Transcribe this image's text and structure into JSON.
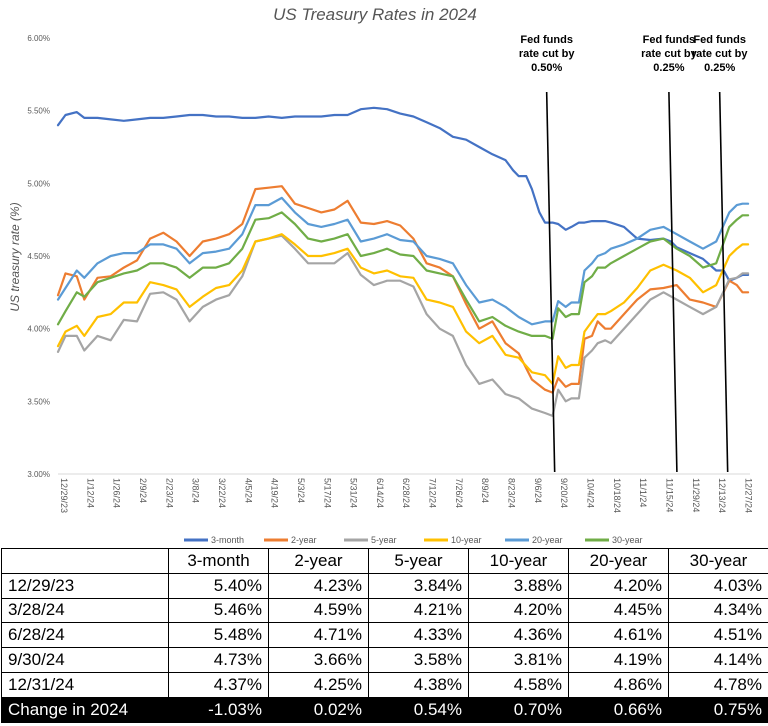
{
  "chart_data": {
    "type": "line",
    "title": "US Treasury Rates in 2024",
    "xlabel": "",
    "ylabel": "US treasury rate (%)",
    "ylim": [
      3.0,
      6.0
    ],
    "y_ticks": [
      "3.00%",
      "3.50%",
      "4.00%",
      "4.50%",
      "5.00%",
      "5.50%",
      "6.00%"
    ],
    "x_tick_labels": [
      "12/29/23",
      "1/12/24",
      "1/26/24",
      "2/9/24",
      "2/23/24",
      "3/8/24",
      "3/22/24",
      "4/5/24",
      "4/19/24",
      "5/3/24",
      "5/17/24",
      "5/31/24",
      "6/14/24",
      "6/28/24",
      "7/12/24",
      "7/26/24",
      "8/9/24",
      "8/23/24",
      "9/6/24",
      "9/20/24",
      "10/4/24",
      "10/18/24",
      "11/1/24",
      "11/15/24",
      "11/29/24",
      "12/13/24",
      "12/27/24"
    ],
    "x_tick_days": [
      0,
      14,
      28,
      42,
      56,
      70,
      84,
      98,
      112,
      126,
      140,
      154,
      168,
      182,
      196,
      210,
      224,
      238,
      252,
      266,
      280,
      294,
      308,
      322,
      336,
      350,
      364
    ],
    "x_range_days": [
      0,
      368
    ],
    "legend_position": "bottom",
    "series": [
      {
        "name": "3-month",
        "color": "#4472C4",
        "x": [
          0,
          4,
          10,
          14,
          21,
          28,
          35,
          42,
          49,
          56,
          63,
          70,
          77,
          84,
          91,
          98,
          105,
          112,
          119,
          126,
          133,
          140,
          147,
          154,
          161,
          168,
          175,
          182,
          189,
          196,
          203,
          210,
          217,
          224,
          231,
          238,
          242,
          245,
          249,
          252,
          256,
          259,
          263,
          266,
          270,
          273,
          277,
          280,
          284,
          287,
          291,
          294,
          301,
          308,
          315,
          322,
          326,
          329,
          336,
          343,
          350,
          354,
          357,
          361,
          364,
          367
        ],
        "values": [
          5.4,
          5.47,
          5.49,
          5.45,
          5.45,
          5.44,
          5.43,
          5.44,
          5.45,
          5.45,
          5.46,
          5.47,
          5.47,
          5.46,
          5.46,
          5.45,
          5.45,
          5.46,
          5.45,
          5.46,
          5.46,
          5.46,
          5.47,
          5.47,
          5.51,
          5.52,
          5.51,
          5.48,
          5.46,
          5.42,
          5.38,
          5.32,
          5.3,
          5.25,
          5.2,
          5.16,
          5.09,
          5.05,
          5.05,
          4.96,
          4.8,
          4.73,
          4.73,
          4.72,
          4.68,
          4.7,
          4.73,
          4.73,
          4.74,
          4.74,
          4.74,
          4.73,
          4.7,
          4.62,
          4.61,
          4.62,
          4.6,
          4.56,
          4.52,
          4.48,
          4.4,
          4.4,
          4.33,
          4.35,
          4.37,
          4.37
        ]
      },
      {
        "name": "2-year",
        "color": "#ED7D31",
        "x": [
          0,
          4,
          10,
          14,
          21,
          28,
          35,
          42,
          49,
          56,
          63,
          70,
          77,
          84,
          91,
          98,
          105,
          112,
          119,
          126,
          133,
          140,
          147,
          154,
          161,
          168,
          175,
          182,
          189,
          196,
          203,
          210,
          217,
          224,
          231,
          238,
          245,
          252,
          259,
          263,
          266,
          270,
          273,
          277,
          280,
          284,
          287,
          291,
          294,
          301,
          308,
          315,
          322,
          329,
          336,
          343,
          350,
          357,
          361,
          364,
          367
        ],
        "values": [
          4.23,
          4.38,
          4.36,
          4.2,
          4.35,
          4.36,
          4.42,
          4.47,
          4.62,
          4.66,
          4.6,
          4.5,
          4.6,
          4.62,
          4.65,
          4.72,
          4.96,
          4.97,
          4.98,
          4.86,
          4.83,
          4.8,
          4.82,
          4.88,
          4.73,
          4.72,
          4.74,
          4.71,
          4.62,
          4.45,
          4.42,
          4.36,
          4.17,
          4.0,
          4.05,
          3.9,
          3.83,
          3.65,
          3.58,
          3.56,
          3.66,
          3.6,
          3.62,
          3.62,
          3.93,
          3.95,
          4.05,
          4.0,
          4.0,
          4.1,
          4.2,
          4.27,
          4.28,
          4.3,
          4.2,
          4.18,
          4.15,
          4.33,
          4.3,
          4.25,
          4.25
        ]
      },
      {
        "name": "5-year",
        "color": "#A5A5A5",
        "x": [
          0,
          4,
          10,
          14,
          21,
          28,
          35,
          42,
          49,
          56,
          63,
          70,
          77,
          84,
          91,
          98,
          105,
          112,
          119,
          126,
          133,
          140,
          147,
          154,
          161,
          168,
          175,
          182,
          189,
          196,
          203,
          210,
          217,
          224,
          231,
          238,
          245,
          252,
          259,
          263,
          266,
          270,
          273,
          277,
          280,
          284,
          287,
          291,
          294,
          301,
          308,
          315,
          322,
          329,
          336,
          343,
          350,
          357,
          361,
          364,
          367
        ],
        "values": [
          3.84,
          3.95,
          3.95,
          3.85,
          3.95,
          3.92,
          4.06,
          4.05,
          4.24,
          4.25,
          4.2,
          4.05,
          4.15,
          4.2,
          4.23,
          4.36,
          4.6,
          4.62,
          4.64,
          4.55,
          4.45,
          4.45,
          4.45,
          4.52,
          4.37,
          4.3,
          4.33,
          4.33,
          4.29,
          4.1,
          4.0,
          3.95,
          3.75,
          3.62,
          3.65,
          3.55,
          3.52,
          3.45,
          3.42,
          3.4,
          3.58,
          3.5,
          3.52,
          3.52,
          3.8,
          3.85,
          3.9,
          3.92,
          3.9,
          4.0,
          4.1,
          4.2,
          4.25,
          4.2,
          4.15,
          4.1,
          4.15,
          4.34,
          4.35,
          4.38,
          4.38
        ]
      },
      {
        "name": "10-year",
        "color": "#FFC000",
        "x": [
          0,
          4,
          10,
          14,
          21,
          28,
          35,
          42,
          49,
          56,
          63,
          70,
          77,
          84,
          91,
          98,
          105,
          112,
          119,
          126,
          133,
          140,
          147,
          154,
          161,
          168,
          175,
          182,
          189,
          196,
          203,
          210,
          217,
          224,
          231,
          238,
          245,
          252,
          259,
          263,
          266,
          270,
          273,
          277,
          280,
          284,
          287,
          291,
          294,
          301,
          308,
          315,
          322,
          329,
          336,
          343,
          350,
          357,
          361,
          364,
          367
        ],
        "values": [
          3.88,
          3.98,
          4.02,
          3.95,
          4.08,
          4.1,
          4.18,
          4.18,
          4.32,
          4.3,
          4.27,
          4.15,
          4.22,
          4.28,
          4.3,
          4.4,
          4.6,
          4.62,
          4.65,
          4.58,
          4.5,
          4.5,
          4.52,
          4.55,
          4.42,
          4.38,
          4.4,
          4.36,
          4.35,
          4.2,
          4.18,
          4.15,
          3.98,
          3.9,
          3.95,
          3.82,
          3.8,
          3.7,
          3.68,
          3.62,
          3.81,
          3.73,
          3.75,
          3.75,
          3.98,
          4.05,
          4.1,
          4.1,
          4.12,
          4.18,
          4.28,
          4.4,
          4.44,
          4.4,
          4.35,
          4.25,
          4.3,
          4.5,
          4.55,
          4.58,
          4.58
        ]
      },
      {
        "name": "20-year",
        "color": "#5B9BD5",
        "x": [
          0,
          4,
          10,
          14,
          21,
          28,
          35,
          42,
          49,
          56,
          63,
          70,
          77,
          84,
          91,
          98,
          105,
          112,
          119,
          126,
          133,
          140,
          147,
          154,
          161,
          168,
          175,
          182,
          189,
          196,
          203,
          210,
          217,
          224,
          231,
          238,
          245,
          252,
          259,
          263,
          266,
          270,
          273,
          277,
          280,
          284,
          287,
          291,
          294,
          301,
          308,
          315,
          322,
          329,
          336,
          343,
          350,
          357,
          361,
          364,
          367
        ],
        "values": [
          4.2,
          4.28,
          4.4,
          4.35,
          4.45,
          4.5,
          4.52,
          4.52,
          4.58,
          4.58,
          4.55,
          4.45,
          4.52,
          4.53,
          4.55,
          4.65,
          4.85,
          4.85,
          4.9,
          4.8,
          4.72,
          4.7,
          4.72,
          4.75,
          4.6,
          4.62,
          4.65,
          4.61,
          4.6,
          4.5,
          4.48,
          4.45,
          4.3,
          4.18,
          4.2,
          4.15,
          4.08,
          4.03,
          4.05,
          4.05,
          4.19,
          4.15,
          4.18,
          4.18,
          4.4,
          4.45,
          4.5,
          4.52,
          4.55,
          4.58,
          4.62,
          4.68,
          4.7,
          4.65,
          4.6,
          4.55,
          4.6,
          4.8,
          4.85,
          4.86,
          4.86
        ]
      },
      {
        "name": "30-year",
        "color": "#70AD47",
        "x": [
          0,
          4,
          10,
          14,
          21,
          28,
          35,
          42,
          49,
          56,
          63,
          70,
          77,
          84,
          91,
          98,
          105,
          112,
          119,
          126,
          133,
          140,
          147,
          154,
          161,
          168,
          175,
          182,
          189,
          196,
          203,
          210,
          217,
          224,
          231,
          238,
          245,
          252,
          259,
          263,
          266,
          270,
          273,
          277,
          280,
          284,
          287,
          291,
          294,
          301,
          308,
          315,
          322,
          329,
          336,
          343,
          350,
          357,
          361,
          364,
          367
        ],
        "values": [
          4.03,
          4.12,
          4.25,
          4.22,
          4.32,
          4.35,
          4.38,
          4.4,
          4.45,
          4.45,
          4.42,
          4.35,
          4.42,
          4.42,
          4.45,
          4.55,
          4.75,
          4.76,
          4.8,
          4.72,
          4.62,
          4.6,
          4.62,
          4.65,
          4.5,
          4.52,
          4.55,
          4.51,
          4.5,
          4.4,
          4.38,
          4.36,
          4.2,
          4.05,
          4.08,
          4.02,
          3.98,
          3.95,
          3.95,
          3.93,
          4.14,
          4.08,
          4.1,
          4.1,
          4.32,
          4.36,
          4.42,
          4.42,
          4.45,
          4.5,
          4.55,
          4.6,
          4.62,
          4.55,
          4.5,
          4.42,
          4.45,
          4.7,
          4.75,
          4.78,
          4.78
        ]
      }
    ],
    "annotations": [
      {
        "day": 262,
        "lines": [
          "Fed funds",
          "rate cut by",
          "0.50%"
        ]
      },
      {
        "day": 327,
        "lines": [
          "Fed funds",
          "rate cut by",
          "0.25%"
        ]
      },
      {
        "day": 354,
        "lines": [
          "Fed funds",
          "rate cut by",
          "0.25%"
        ]
      }
    ]
  },
  "table": {
    "columns": [
      "",
      "3-month",
      "2-year",
      "5-year",
      "10-year",
      "20-year",
      "30-year"
    ],
    "rows": [
      {
        "label": "12/29/23",
        "values": [
          "5.40%",
          "4.23%",
          "3.84%",
          "3.88%",
          "4.20%",
          "4.03%"
        ]
      },
      {
        "label": "3/28/24",
        "values": [
          "5.46%",
          "4.59%",
          "4.21%",
          "4.20%",
          "4.45%",
          "4.34%"
        ]
      },
      {
        "label": "6/28/24",
        "values": [
          "5.48%",
          "4.71%",
          "4.33%",
          "4.36%",
          "4.61%",
          "4.51%"
        ]
      },
      {
        "label": "9/30/24",
        "values": [
          "4.73%",
          "3.66%",
          "3.58%",
          "3.81%",
          "4.19%",
          "4.14%"
        ]
      },
      {
        "label": "12/31/24",
        "values": [
          "4.37%",
          "4.25%",
          "4.38%",
          "4.58%",
          "4.86%",
          "4.78%"
        ]
      }
    ],
    "change_row": {
      "label": "Change in 2024",
      "values": [
        "-1.03%",
        "0.02%",
        "0.54%",
        "0.70%",
        "0.66%",
        "0.75%"
      ]
    }
  }
}
